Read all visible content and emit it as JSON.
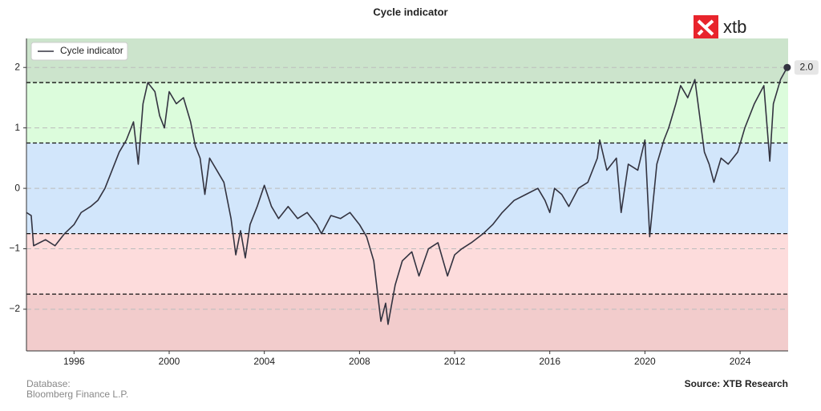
{
  "chart_data": {
    "type": "line",
    "title": "Cycle indicator",
    "logo": "xtb",
    "x": [
      1994.0,
      1994.2,
      1994.3,
      1994.8,
      1995.2,
      1995.6,
      1996.0,
      1996.3,
      1996.7,
      1997.0,
      1997.3,
      1997.6,
      1997.9,
      1998.2,
      1998.5,
      1998.7,
      1998.9,
      1999.1,
      1999.4,
      1999.6,
      1999.8,
      2000.0,
      2000.3,
      2000.6,
      2000.9,
      2001.1,
      2001.3,
      2001.5,
      2001.7,
      2002.0,
      2002.3,
      2002.6,
      2002.8,
      2003.0,
      2003.2,
      2003.4,
      2003.7,
      2004.0,
      2004.3,
      2004.6,
      2005.0,
      2005.4,
      2005.8,
      2006.2,
      2006.4,
      2006.8,
      2007.2,
      2007.6,
      2008.0,
      2008.3,
      2008.6,
      2008.9,
      2009.1,
      2009.2,
      2009.5,
      2009.8,
      2010.2,
      2010.5,
      2010.9,
      2011.3,
      2011.7,
      2012.0,
      2012.3,
      2012.7,
      2013.2,
      2013.6,
      2014.0,
      2014.5,
      2015.0,
      2015.5,
      2015.8,
      2016.0,
      2016.2,
      2016.5,
      2016.8,
      2017.2,
      2017.6,
      2018.0,
      2018.1,
      2018.4,
      2018.8,
      2019.0,
      2019.3,
      2019.7,
      2020.0,
      2020.2,
      2020.5,
      2020.8,
      2021.0,
      2021.3,
      2021.5,
      2021.8,
      2022.1,
      2022.3,
      2022.5,
      2022.7,
      2022.9,
      2023.2,
      2023.5,
      2023.9,
      2024.2,
      2024.6,
      2025.0,
      2025.25,
      2025.4,
      2025.7,
      2025.98
    ],
    "series": [
      {
        "name": "Cycle indicator",
        "color": "#333340",
        "values": [
          -0.4,
          -0.45,
          -0.95,
          -0.85,
          -0.95,
          -0.75,
          -0.6,
          -0.4,
          -0.3,
          -0.2,
          0.0,
          0.3,
          0.6,
          0.8,
          1.1,
          0.4,
          1.4,
          1.75,
          1.6,
          1.2,
          1.0,
          1.6,
          1.4,
          1.5,
          1.1,
          0.7,
          0.5,
          -0.1,
          0.5,
          0.3,
          0.1,
          -0.5,
          -1.1,
          -0.7,
          -1.15,
          -0.6,
          -0.3,
          0.05,
          -0.3,
          -0.5,
          -0.3,
          -0.5,
          -0.4,
          -0.6,
          -0.75,
          -0.45,
          -0.5,
          -0.4,
          -0.6,
          -0.8,
          -1.2,
          -2.2,
          -1.9,
          -2.25,
          -1.6,
          -1.2,
          -1.05,
          -1.45,
          -1.0,
          -0.9,
          -1.45,
          -1.1,
          -1.0,
          -0.9,
          -0.75,
          -0.6,
          -0.4,
          -0.2,
          -0.1,
          0.0,
          -0.2,
          -0.4,
          0.0,
          -0.1,
          -0.3,
          0.0,
          0.1,
          0.5,
          0.8,
          0.3,
          0.5,
          -0.4,
          0.4,
          0.3,
          0.8,
          -0.8,
          0.4,
          0.8,
          1.0,
          1.4,
          1.7,
          1.5,
          1.8,
          1.2,
          0.6,
          0.4,
          0.1,
          0.5,
          0.4,
          0.6,
          1.0,
          1.4,
          1.7,
          0.45,
          1.4,
          1.8,
          2.0
        ]
      }
    ],
    "end_label": "2.0",
    "xlim": [
      1994.0,
      2026.02
    ],
    "xticks": [
      1996,
      2000,
      2004,
      2008,
      2012,
      2016,
      2020,
      2024
    ],
    "ylim": [
      -2.69,
      2.48
    ],
    "yticks": [
      {
        "value": -2,
        "label": "−2"
      },
      {
        "value": -1,
        "label": "−1"
      },
      0,
      1,
      2
    ],
    "grid": true,
    "legend": "upper left",
    "thresholds": [
      -1.75,
      -0.75,
      0.75,
      1.75
    ],
    "band_colors": [
      "#f2cccc",
      "#fddcdc",
      "#d2e6fb",
      "#dcfcdc",
      "#cce4cc"
    ],
    "footer_left": [
      "Database:",
      "Bloomberg Finance L.P."
    ],
    "source": "Source: XTB Research"
  }
}
